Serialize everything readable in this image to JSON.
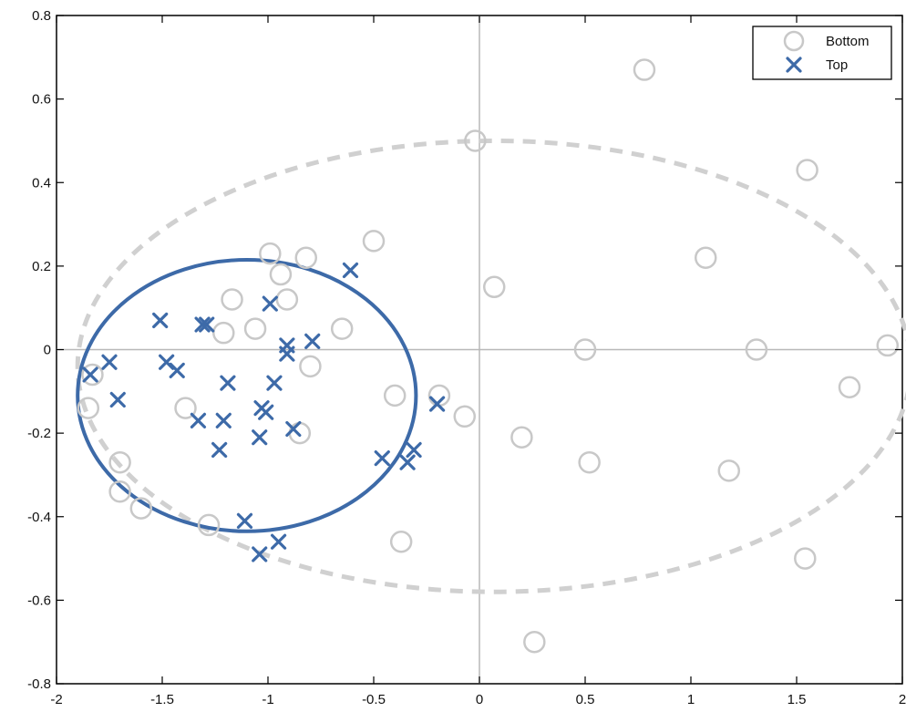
{
  "chart_data": {
    "type": "scatter",
    "title": "",
    "xlabel": "",
    "ylabel": "",
    "xlim": [
      -2,
      2
    ],
    "ylim": [
      -0.8,
      0.8
    ],
    "x_ticks": [
      -2,
      -1.5,
      -1,
      -0.5,
      0,
      0.5,
      1,
      1.5,
      2
    ],
    "x_tick_labels": [
      "-2",
      "-1.5",
      "-1",
      "-0.5",
      "0",
      "0.5",
      "1",
      "1.5",
      "2"
    ],
    "y_ticks": [
      -0.8,
      -0.6,
      -0.4,
      -0.2,
      0,
      0.2,
      0.4,
      0.6,
      0.8
    ],
    "y_tick_labels": [
      "-0.8",
      "-0.6",
      "-0.4",
      "-0.2",
      "0",
      "0.2",
      "0.4",
      "0.6",
      "0.8"
    ],
    "grid": false,
    "zero_lines": true,
    "legend": {
      "position": "top-right",
      "entries": [
        {
          "label": "Bottom",
          "marker": "circle",
          "color": "#c8c8c8"
        },
        {
          "label": "Top",
          "marker": "x",
          "color": "#3d6aa8"
        }
      ]
    },
    "series": [
      {
        "name": "Bottom",
        "marker": "circle",
        "color": "#c8c8c8",
        "points": [
          [
            0.78,
            0.67
          ],
          [
            -0.02,
            0.5
          ],
          [
            1.55,
            0.43
          ],
          [
            1.07,
            0.22
          ],
          [
            0.07,
            0.15
          ],
          [
            -0.5,
            0.26
          ],
          [
            -0.99,
            0.23
          ],
          [
            -0.82,
            0.22
          ],
          [
            -0.94,
            0.18
          ],
          [
            -1.17,
            0.12
          ],
          [
            -0.91,
            0.12
          ],
          [
            -1.21,
            0.04
          ],
          [
            -1.06,
            0.05
          ],
          [
            -0.65,
            0.05
          ],
          [
            0.5,
            0.0
          ],
          [
            1.31,
            0.0
          ],
          [
            1.93,
            0.01
          ],
          [
            -0.8,
            -0.04
          ],
          [
            1.75,
            -0.09
          ],
          [
            -0.4,
            -0.11
          ],
          [
            -0.19,
            -0.11
          ],
          [
            -1.39,
            -0.14
          ],
          [
            -0.07,
            -0.16
          ],
          [
            -0.85,
            -0.2
          ],
          [
            0.2,
            -0.21
          ],
          [
            0.52,
            -0.27
          ],
          [
            1.18,
            -0.29
          ],
          [
            -1.83,
            -0.06
          ],
          [
            -1.85,
            -0.14
          ],
          [
            -1.7,
            -0.27
          ],
          [
            -1.7,
            -0.34
          ],
          [
            -1.6,
            -0.38
          ],
          [
            -1.28,
            -0.42
          ],
          [
            -0.37,
            -0.46
          ],
          [
            1.54,
            -0.5
          ],
          [
            0.26,
            -0.7
          ]
        ]
      },
      {
        "name": "Top",
        "marker": "x",
        "color": "#3d6aa8",
        "points": [
          [
            -0.61,
            0.19
          ],
          [
            -0.99,
            0.11
          ],
          [
            -1.51,
            0.07
          ],
          [
            -1.31,
            0.06
          ],
          [
            -1.29,
            0.06
          ],
          [
            -0.79,
            0.02
          ],
          [
            -0.91,
            0.01
          ],
          [
            -0.91,
            -0.01
          ],
          [
            -1.75,
            -0.03
          ],
          [
            -1.84,
            -0.06
          ],
          [
            -1.48,
            -0.03
          ],
          [
            -1.43,
            -0.05
          ],
          [
            -1.19,
            -0.08
          ],
          [
            -0.97,
            -0.08
          ],
          [
            -1.71,
            -0.12
          ],
          [
            -1.03,
            -0.14
          ],
          [
            -1.01,
            -0.15
          ],
          [
            -1.33,
            -0.17
          ],
          [
            -1.21,
            -0.17
          ],
          [
            -0.88,
            -0.19
          ],
          [
            -1.04,
            -0.21
          ],
          [
            -1.23,
            -0.24
          ],
          [
            -0.2,
            -0.13
          ],
          [
            -0.46,
            -0.26
          ],
          [
            -0.31,
            -0.24
          ],
          [
            -0.34,
            -0.27
          ],
          [
            -1.11,
            -0.41
          ],
          [
            -0.95,
            -0.46
          ],
          [
            -1.04,
            -0.49
          ]
        ]
      }
    ],
    "ellipses": [
      {
        "series": "Bottom",
        "style": "dashed",
        "color": "#d0d0d0",
        "cx": 0.07,
        "cy": -0.04,
        "rx": 1.97,
        "ry": 0.54
      },
      {
        "series": "Top",
        "style": "solid",
        "color": "#3d6aa8",
        "cx": -1.1,
        "cy": -0.11,
        "rx": 0.8,
        "ry": 0.325
      }
    ]
  }
}
